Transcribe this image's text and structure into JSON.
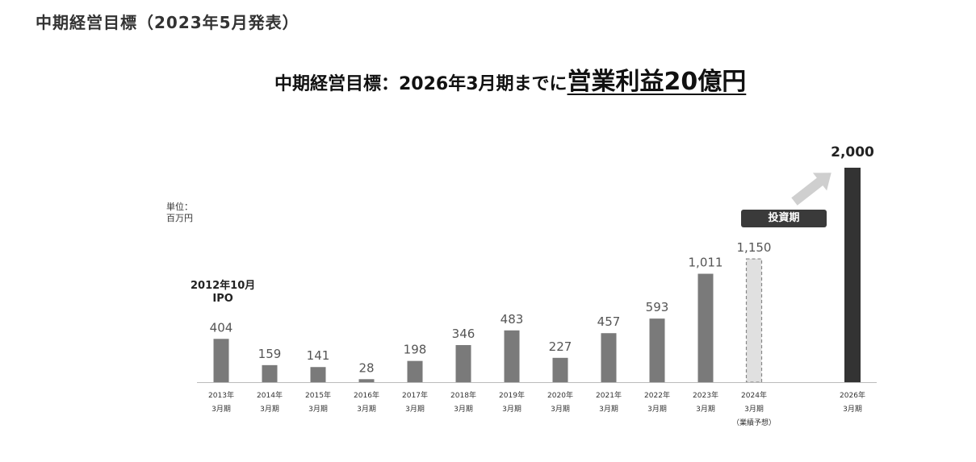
{
  "page": {
    "heading": "中期経営目標（2023年5月発表）",
    "headline_lead": "中期経営目標：2026年3月期までに",
    "headline_target": "営業利益20億円"
  },
  "annotations": {
    "unit_line1": "単位：",
    "unit_line2": "百万円",
    "ipo_line1": "2012年10月",
    "ipo_line2": "IPO",
    "phase_badge": "投資期",
    "forecast_note": "（業績予想）"
  },
  "colors": {
    "actual_bar": "#7a7a7a",
    "forecast_bar_fill": "#e0e0e0",
    "forecast_bar_border": "#888888",
    "target_bar": "#333333",
    "arrow": "#cfcfcf"
  },
  "chart_data": {
    "type": "bar",
    "ylabel": "単位：百万円",
    "categories": [
      [
        "2013年",
        "3月期"
      ],
      [
        "2014年",
        "3月期"
      ],
      [
        "2015年",
        "3月期"
      ],
      [
        "2016年",
        "3月期"
      ],
      [
        "2017年",
        "3月期"
      ],
      [
        "2018年",
        "3月期"
      ],
      [
        "2019年",
        "3月期"
      ],
      [
        "2020年",
        "3月期"
      ],
      [
        "2021年",
        "3月期"
      ],
      [
        "2022年",
        "3月期"
      ],
      [
        "2023年",
        "3月期"
      ],
      [
        "2024年",
        "3月期"
      ],
      [
        "2026年",
        "3月期"
      ]
    ],
    "values": [
      404,
      159,
      141,
      28,
      198,
      346,
      483,
      227,
      457,
      593,
      1011,
      1150,
      2000
    ],
    "value_labels": [
      "404",
      "159",
      "141",
      "28",
      "198",
      "346",
      "483",
      "227",
      "457",
      "593",
      "1,011",
      "1,150",
      "2,000"
    ],
    "bar_kinds": [
      "actual",
      "actual",
      "actual",
      "actual",
      "actual",
      "actual",
      "actual",
      "actual",
      "actual",
      "actual",
      "actual",
      "forecast",
      "target"
    ],
    "ylim": [
      0,
      2000
    ],
    "grid": false,
    "legend": false
  }
}
